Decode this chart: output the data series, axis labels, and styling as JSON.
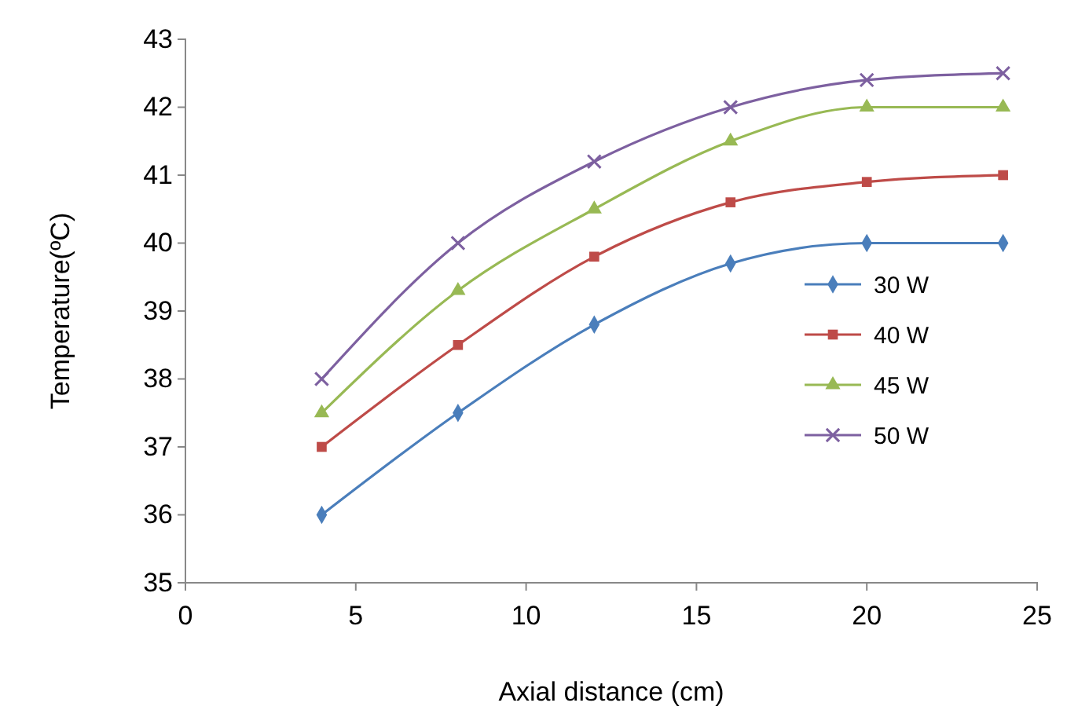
{
  "chart_data": {
    "type": "line",
    "xlabel": "Axial distance (cm)",
    "ylabel": "Temperature(ºC)",
    "x": [
      4,
      8,
      12,
      16,
      20,
      24
    ],
    "xlim": [
      0,
      25
    ],
    "xticks": [
      0,
      5,
      10,
      15,
      20,
      25
    ],
    "ylim": [
      35,
      43
    ],
    "yticks": [
      35,
      36,
      37,
      38,
      39,
      40,
      41,
      42,
      43
    ],
    "grid": false,
    "legend": "right",
    "line_style": "solid",
    "series": [
      {
        "name": "30 W",
        "color": "#4a7ebb",
        "marker": "diamond",
        "values": [
          36.0,
          37.5,
          38.8,
          39.7,
          40.0,
          40.0
        ]
      },
      {
        "name": "40 W",
        "color": "#be4b48",
        "marker": "square",
        "values": [
          37.0,
          38.5,
          39.8,
          40.6,
          40.9,
          41.0
        ]
      },
      {
        "name": "45 W",
        "color": "#98b954",
        "marker": "triangle",
        "values": [
          37.5,
          39.3,
          40.5,
          41.5,
          42.0,
          42.0
        ]
      },
      {
        "name": "50 W",
        "color": "#7d60a0",
        "marker": "cross",
        "values": [
          38.0,
          40.0,
          41.2,
          42.0,
          42.4,
          42.5
        ]
      }
    ]
  }
}
